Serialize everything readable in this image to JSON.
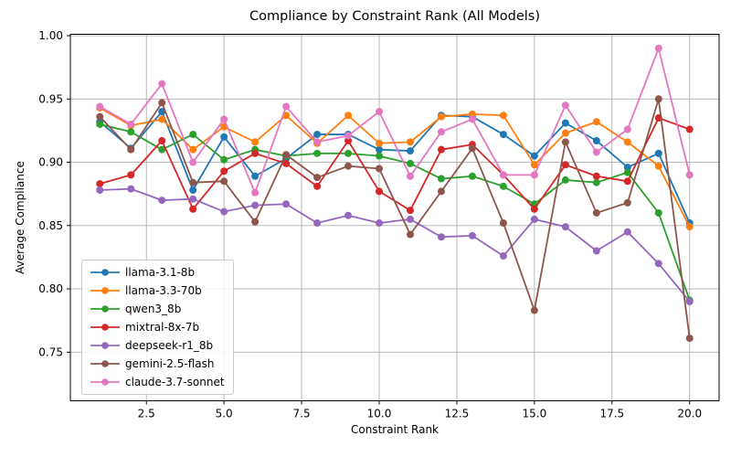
{
  "chart_data": {
    "type": "line",
    "title": "Compliance by Constraint Rank (All Models)",
    "xlabel": "Constraint Rank",
    "ylabel": "Average Compliance",
    "grid": true,
    "legend_position": "lower-left",
    "x": [
      1,
      2,
      3,
      4,
      5,
      6,
      7,
      8,
      9,
      10,
      11,
      12,
      13,
      14,
      15,
      16,
      17,
      18,
      19,
      20
    ],
    "xlim": [
      0.05,
      20.95
    ],
    "ylim": [
      0.7116,
      1.0011
    ],
    "xticks": [
      2.5,
      5,
      7.5,
      10,
      12.5,
      15,
      17.5,
      20
    ],
    "xtick_labels": [
      "2.5",
      "5.0",
      "7.5",
      "10.0",
      "12.5",
      "15.0",
      "17.5",
      "20.0"
    ],
    "yticks": [
      0.75,
      0.8,
      0.85,
      0.9,
      0.95,
      1.0
    ],
    "ytick_labels": [
      "0.75",
      "0.80",
      "0.85",
      "0.90",
      "0.95",
      "1.00"
    ],
    "grid_color": "#b0b0b0",
    "series": [
      {
        "name": "llama-3.1-8b",
        "color": "#1f77b4",
        "values": [
          0.932,
          0.911,
          0.94,
          0.878,
          0.92,
          0.889,
          0.903,
          0.922,
          0.922,
          0.91,
          0.909,
          0.937,
          0.936,
          0.922,
          0.905,
          0.931,
          0.917,
          0.896,
          0.907,
          0.852
        ]
      },
      {
        "name": "llama-3.3-70b",
        "color": "#ff7f0e",
        "values": [
          0.943,
          0.929,
          0.934,
          0.91,
          0.928,
          0.916,
          0.937,
          0.915,
          0.937,
          0.915,
          0.916,
          0.936,
          0.938,
          0.937,
          0.898,
          0.923,
          0.932,
          0.916,
          0.897,
          0.849
        ]
      },
      {
        "name": "qwen3_8b",
        "color": "#2ca02c",
        "values": [
          0.93,
          0.924,
          0.91,
          0.922,
          0.902,
          0.91,
          0.905,
          0.907,
          0.907,
          0.905,
          0.899,
          0.887,
          0.889,
          0.881,
          0.867,
          0.886,
          0.884,
          0.892,
          0.86,
          0.791
        ]
      },
      {
        "name": "mixtral-8x-7b",
        "color": "#d62728",
        "values": [
          0.883,
          0.89,
          0.917,
          0.863,
          0.893,
          0.907,
          0.899,
          0.881,
          0.917,
          0.877,
          0.862,
          0.91,
          0.914,
          0.89,
          0.863,
          0.898,
          0.889,
          0.885,
          0.935,
          0.926
        ]
      },
      {
        "name": "deepseek-r1_8b",
        "color": "#9467bd",
        "values": [
          0.878,
          0.879,
          0.87,
          0.871,
          0.861,
          0.866,
          0.867,
          0.852,
          0.858,
          0.852,
          0.855,
          0.841,
          0.842,
          0.826,
          0.855,
          0.849,
          0.83,
          0.845,
          0.82,
          0.79
        ]
      },
      {
        "name": "gemini-2.5-flash",
        "color": "#8c564b",
        "values": [
          0.936,
          0.91,
          0.947,
          0.884,
          0.885,
          0.853,
          0.906,
          0.888,
          0.897,
          0.895,
          0.843,
          0.877,
          0.911,
          0.852,
          0.783,
          0.916,
          0.86,
          0.868,
          0.95,
          0.761
        ]
      },
      {
        "name": "claude-3.7-sonnet",
        "color": "#e377c2",
        "values": [
          0.944,
          0.93,
          0.962,
          0.9,
          0.934,
          0.876,
          0.944,
          0.916,
          0.921,
          0.94,
          0.889,
          0.924,
          0.934,
          0.89,
          0.89,
          0.945,
          0.908,
          0.926,
          0.99,
          0.89
        ]
      }
    ]
  }
}
